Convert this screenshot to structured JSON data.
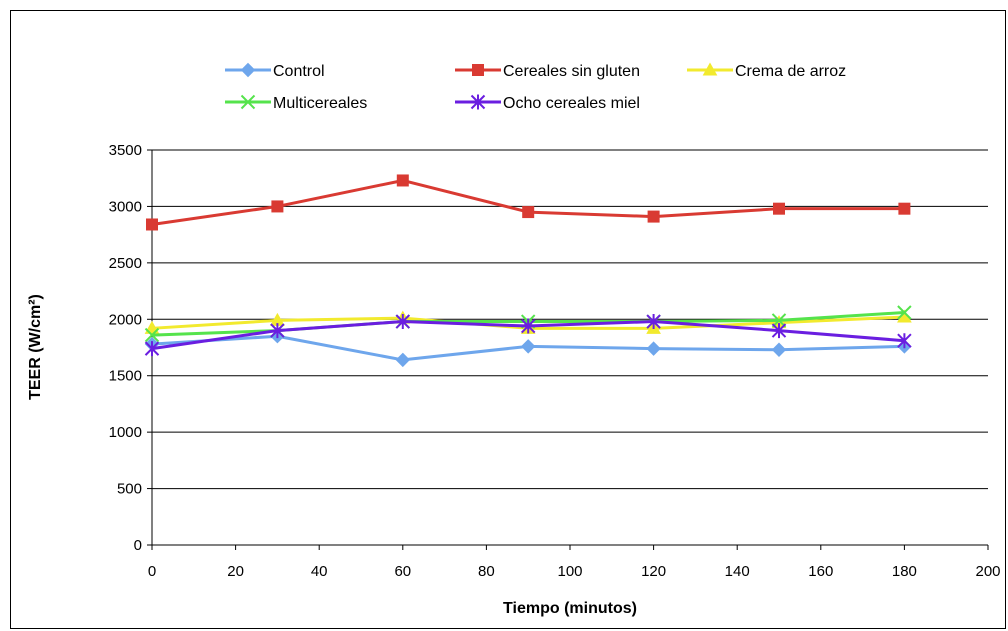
{
  "chart_data": {
    "type": "line",
    "xlabel": "Tiempo (minutos)",
    "ylabel": "TEER (W/cm²)",
    "xlim": [
      0,
      200
    ],
    "ylim": [
      0,
      3500
    ],
    "x_ticks": [
      0,
      20,
      40,
      60,
      80,
      100,
      120,
      140,
      160,
      180,
      200
    ],
    "y_ticks": [
      0,
      500,
      1000,
      1500,
      2000,
      2500,
      3000,
      3500
    ],
    "grid": "horizontal",
    "legend_position": "top",
    "x": [
      0,
      30,
      60,
      90,
      120,
      150,
      180
    ],
    "series": [
      {
        "name": "Control",
        "color": "#6ea6ec",
        "marker": "diamond",
        "values": [
          1780,
          1850,
          1640,
          1760,
          1740,
          1730,
          1760
        ]
      },
      {
        "name": "Cereales sin gluten",
        "color": "#d93a32",
        "marker": "square",
        "values": [
          2840,
          3000,
          3230,
          2950,
          2910,
          2980,
          2980
        ]
      },
      {
        "name": "Crema de arroz",
        "color": "#f2ea2e",
        "marker": "triangle",
        "values": [
          1920,
          1990,
          2010,
          1920,
          1920,
          1970,
          2020
        ]
      },
      {
        "name": "Multicereales",
        "color": "#55e34c",
        "marker": "x",
        "values": [
          1860,
          1900,
          1980,
          1980,
          1980,
          1990,
          2060
        ]
      },
      {
        "name": "Ocho cereales miel",
        "color": "#6a1ee0",
        "marker": "star",
        "values": [
          1740,
          1900,
          1980,
          1940,
          1980,
          1900,
          1810
        ]
      }
    ]
  }
}
